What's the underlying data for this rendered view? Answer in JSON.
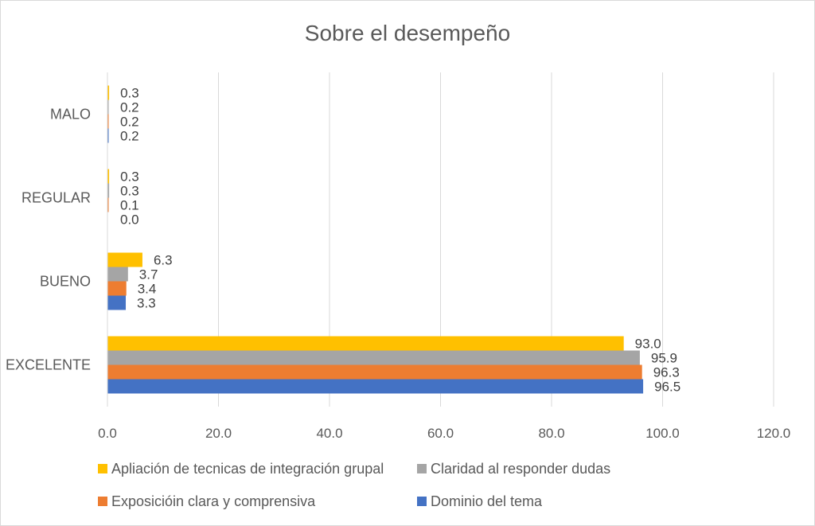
{
  "chart_data": {
    "type": "bar",
    "orientation": "horizontal",
    "title": "Sobre el desempeño",
    "categories": [
      "EXCELENTE",
      "BUENO",
      "REGULAR",
      "MALO"
    ],
    "series": [
      {
        "name": "Dominio del tema",
        "color": "#4472C4",
        "values": [
          96.5,
          3.3,
          0.0,
          0.2
        ]
      },
      {
        "name": "Exposicióin clara y comprensiva",
        "color": "#ED7D31",
        "values": [
          96.3,
          3.4,
          0.1,
          0.2
        ]
      },
      {
        "name": "Claridad al responder dudas",
        "color": "#A5A5A5",
        "values": [
          95.9,
          3.7,
          0.3,
          0.2
        ]
      },
      {
        "name": "Apliación de tecnicas de integración grupal",
        "color": "#FFC000",
        "values": [
          93.0,
          6.3,
          0.3,
          0.3
        ]
      }
    ],
    "xlim": [
      0,
      120
    ],
    "x_ticks": [
      "0.0",
      "20.0",
      "40.0",
      "60.0",
      "80.0",
      "100.0",
      "120.0"
    ],
    "grid": "vertical",
    "legend": "bottom"
  }
}
